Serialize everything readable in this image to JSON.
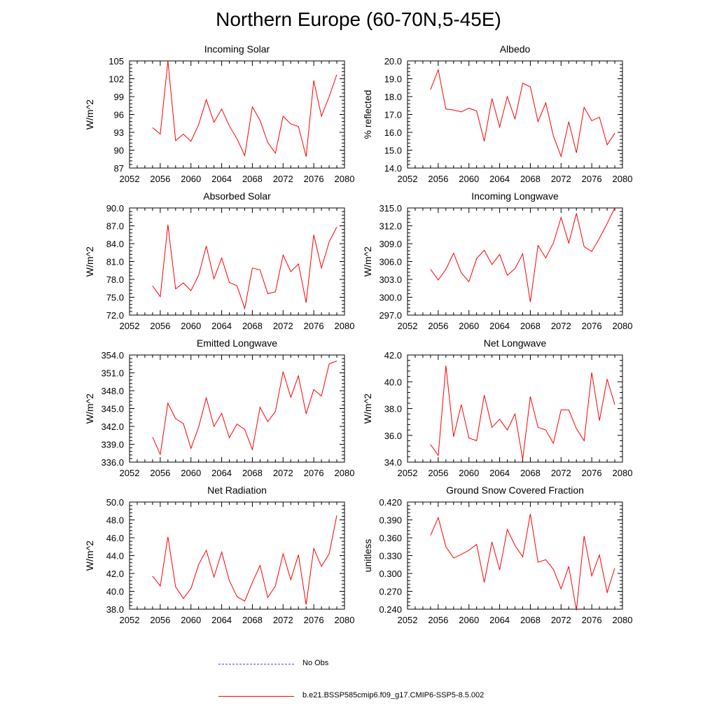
{
  "title": "Northern Europe (60-70N,5-45E)",
  "colors": {
    "series": "#ff0000",
    "obs": "#4a4adf",
    "axis": "#000000"
  },
  "legend": [
    {
      "label": "No Obs",
      "style": "dashed",
      "color": "#4a4adf"
    },
    {
      "label": "b.e21.BSSP585cmip6.f09_g17.CMIP6-SSP5-8.5.002",
      "style": "solid",
      "color": "#ff0000"
    }
  ],
  "chart_data": [
    {
      "type": "line",
      "title": "Incoming Solar",
      "ylabel": "W/m^2",
      "xlim": [
        2052,
        2080
      ],
      "xticks": [
        2052,
        2056,
        2060,
        2064,
        2068,
        2072,
        2076,
        2080
      ],
      "ylim": [
        87,
        105
      ],
      "yticks": [
        87,
        90,
        93,
        96,
        99,
        102,
        105
      ],
      "ytick_decimals": 0,
      "x": [
        2055,
        2056,
        2057,
        2058,
        2059,
        2060,
        2061,
        2062,
        2063,
        2064,
        2065,
        2066,
        2067,
        2068,
        2069,
        2070,
        2071,
        2072,
        2073,
        2074,
        2075,
        2076,
        2077,
        2078,
        2079
      ],
      "series": [
        {
          "values": [
            93.8,
            92.7,
            105.0,
            91.6,
            92.7,
            91.5,
            94.3,
            98.5,
            94.7,
            96.9,
            94.1,
            91.9,
            89.1,
            97.3,
            95.0,
            91.3,
            89.5,
            95.7,
            94.4,
            94.0,
            88.9,
            101.7,
            95.7,
            99.0,
            102.7
          ]
        }
      ]
    },
    {
      "type": "line",
      "title": "Albedo",
      "ylabel": "% reflected",
      "xlim": [
        2052,
        2080
      ],
      "xticks": [
        2052,
        2056,
        2060,
        2064,
        2068,
        2072,
        2076,
        2080
      ],
      "ylim": [
        14.0,
        20.0
      ],
      "yticks": [
        14.0,
        15.0,
        16.0,
        17.0,
        18.0,
        19.0,
        20.0
      ],
      "ytick_decimals": 1,
      "x": [
        2055,
        2056,
        2057,
        2058,
        2059,
        2060,
        2061,
        2062,
        2063,
        2064,
        2065,
        2066,
        2067,
        2068,
        2069,
        2070,
        2071,
        2072,
        2073,
        2074,
        2075,
        2076,
        2077,
        2078,
        2079
      ],
      "series": [
        {
          "values": [
            18.4,
            19.5,
            17.3,
            17.25,
            17.15,
            17.35,
            17.2,
            15.5,
            17.9,
            16.3,
            18.0,
            16.75,
            18.75,
            18.55,
            16.6,
            17.65,
            15.8,
            14.65,
            16.6,
            14.85,
            17.4,
            16.65,
            16.85,
            15.3,
            15.95
          ]
        }
      ]
    },
    {
      "type": "line",
      "title": "Absorbed Solar",
      "ylabel": "W/m^2",
      "xlim": [
        2052,
        2080
      ],
      "xticks": [
        2052,
        2056,
        2060,
        2064,
        2068,
        2072,
        2076,
        2080
      ],
      "ylim": [
        72.0,
        90.0
      ],
      "yticks": [
        72.0,
        75.0,
        78.0,
        81.0,
        84.0,
        87.0,
        90.0
      ],
      "ytick_decimals": 1,
      "x": [
        2055,
        2056,
        2057,
        2058,
        2059,
        2060,
        2061,
        2062,
        2063,
        2064,
        2065,
        2066,
        2067,
        2068,
        2069,
        2070,
        2071,
        2072,
        2073,
        2074,
        2075,
        2076,
        2077,
        2078,
        2079
      ],
      "series": [
        {
          "values": [
            76.9,
            75.1,
            87.2,
            76.4,
            77.4,
            76.1,
            78.7,
            83.6,
            78.1,
            81.6,
            77.5,
            76.9,
            73.1,
            79.9,
            79.6,
            75.6,
            75.9,
            82.1,
            79.3,
            80.6,
            74.1,
            85.5,
            79.9,
            84.3,
            86.8
          ]
        }
      ]
    },
    {
      "type": "line",
      "title": "Incoming Longwave",
      "ylabel": "W/m^2",
      "xlim": [
        2052,
        2080
      ],
      "xticks": [
        2052,
        2056,
        2060,
        2064,
        2068,
        2072,
        2076,
        2080
      ],
      "ylim": [
        297.0,
        315.0
      ],
      "yticks": [
        297.0,
        300.0,
        303.0,
        306.0,
        309.0,
        312.0,
        315.0
      ],
      "ytick_decimals": 1,
      "x": [
        2055,
        2056,
        2057,
        2058,
        2059,
        2060,
        2061,
        2062,
        2063,
        2064,
        2065,
        2066,
        2067,
        2068,
        2069,
        2070,
        2071,
        2072,
        2073,
        2074,
        2075,
        2076,
        2077,
        2078,
        2079
      ],
      "series": [
        {
          "values": [
            304.7,
            302.9,
            304.7,
            307.4,
            304.1,
            302.6,
            306.5,
            307.9,
            305.5,
            307.2,
            303.7,
            304.8,
            307.3,
            299.2,
            308.7,
            306.6,
            309.1,
            313.4,
            309.1,
            314.1,
            308.5,
            307.7,
            309.9,
            312.4,
            315.0
          ]
        }
      ]
    },
    {
      "type": "line",
      "title": "Emitted Longwave",
      "ylabel": "W/m^2",
      "xlim": [
        2052,
        2080
      ],
      "xticks": [
        2052,
        2056,
        2060,
        2064,
        2068,
        2072,
        2076,
        2080
      ],
      "ylim": [
        336.0,
        354.0
      ],
      "yticks": [
        336.0,
        339.0,
        342.0,
        345.0,
        348.0,
        351.0,
        354.0
      ],
      "ytick_decimals": 1,
      "x": [
        2055,
        2056,
        2057,
        2058,
        2059,
        2060,
        2061,
        2062,
        2063,
        2064,
        2065,
        2066,
        2067,
        2068,
        2069,
        2070,
        2071,
        2072,
        2073,
        2074,
        2075,
        2076,
        2077,
        2078,
        2079
      ],
      "series": [
        {
          "values": [
            340.2,
            337.3,
            345.9,
            343.3,
            342.5,
            338.3,
            341.9,
            346.8,
            342.0,
            344.2,
            340.1,
            342.4,
            341.5,
            338.1,
            345.2,
            342.8,
            344.5,
            351.2,
            346.9,
            350.5,
            344.1,
            348.2,
            347.1,
            352.5,
            353.0
          ]
        }
      ]
    },
    {
      "type": "line",
      "title": "Net Longwave",
      "ylabel": "W/m^2",
      "xlim": [
        2052,
        2080
      ],
      "xticks": [
        2052,
        2056,
        2060,
        2064,
        2068,
        2072,
        2076,
        2080
      ],
      "ylim": [
        34.0,
        42.0
      ],
      "yticks": [
        34.0,
        36.0,
        38.0,
        40.0,
        42.0
      ],
      "ytick_decimals": 1,
      "x": [
        2055,
        2056,
        2057,
        2058,
        2059,
        2060,
        2061,
        2062,
        2063,
        2064,
        2065,
        2066,
        2067,
        2068,
        2069,
        2070,
        2071,
        2072,
        2073,
        2074,
        2075,
        2076,
        2077,
        2078,
        2079
      ],
      "series": [
        {
          "values": [
            35.3,
            34.5,
            41.2,
            35.9,
            38.3,
            35.8,
            35.6,
            39.0,
            36.6,
            37.2,
            36.4,
            37.6,
            34.2,
            38.9,
            36.6,
            36.4,
            35.4,
            37.9,
            37.9,
            36.5,
            35.6,
            40.7,
            37.1,
            40.2,
            38.3
          ]
        }
      ]
    },
    {
      "type": "line",
      "title": "Net Radiation",
      "ylabel": "W/m^2",
      "xlim": [
        2052,
        2080
      ],
      "xticks": [
        2052,
        2056,
        2060,
        2064,
        2068,
        2072,
        2076,
        2080
      ],
      "ylim": [
        38.0,
        50.0
      ],
      "yticks": [
        38.0,
        40.0,
        42.0,
        44.0,
        46.0,
        48.0,
        50.0
      ],
      "ytick_decimals": 1,
      "x": [
        2055,
        2056,
        2057,
        2058,
        2059,
        2060,
        2061,
        2062,
        2063,
        2064,
        2065,
        2066,
        2067,
        2068,
        2069,
        2070,
        2071,
        2072,
        2073,
        2074,
        2075,
        2076,
        2077,
        2078,
        2079
      ],
      "series": [
        {
          "values": [
            41.7,
            40.6,
            46.1,
            40.5,
            39.2,
            40.3,
            43.0,
            44.6,
            41.6,
            44.4,
            41.2,
            39.4,
            38.9,
            41.0,
            42.9,
            39.3,
            40.6,
            44.2,
            41.3,
            44.1,
            38.5,
            44.8,
            42.8,
            44.2,
            48.5
          ]
        }
      ]
    },
    {
      "type": "line",
      "title": "Ground Snow Covered Fraction",
      "ylabel": "unitless",
      "xlim": [
        2052,
        2080
      ],
      "xticks": [
        2052,
        2056,
        2060,
        2064,
        2068,
        2072,
        2076,
        2080
      ],
      "ylim": [
        0.24,
        0.42
      ],
      "yticks": [
        0.24,
        0.27,
        0.3,
        0.33,
        0.36,
        0.39,
        0.42
      ],
      "ytick_decimals": 3,
      "x": [
        2055,
        2056,
        2057,
        2058,
        2059,
        2060,
        2061,
        2062,
        2063,
        2064,
        2065,
        2066,
        2067,
        2068,
        2069,
        2070,
        2071,
        2072,
        2073,
        2074,
        2075,
        2076,
        2077,
        2078,
        2079
      ],
      "series": [
        {
          "values": [
            0.364,
            0.394,
            0.345,
            0.326,
            0.332,
            0.339,
            0.349,
            0.285,
            0.353,
            0.306,
            0.374,
            0.347,
            0.328,
            0.4,
            0.319,
            0.323,
            0.307,
            0.274,
            0.312,
            0.238,
            0.363,
            0.296,
            0.331,
            0.268,
            0.309
          ]
        }
      ]
    }
  ]
}
